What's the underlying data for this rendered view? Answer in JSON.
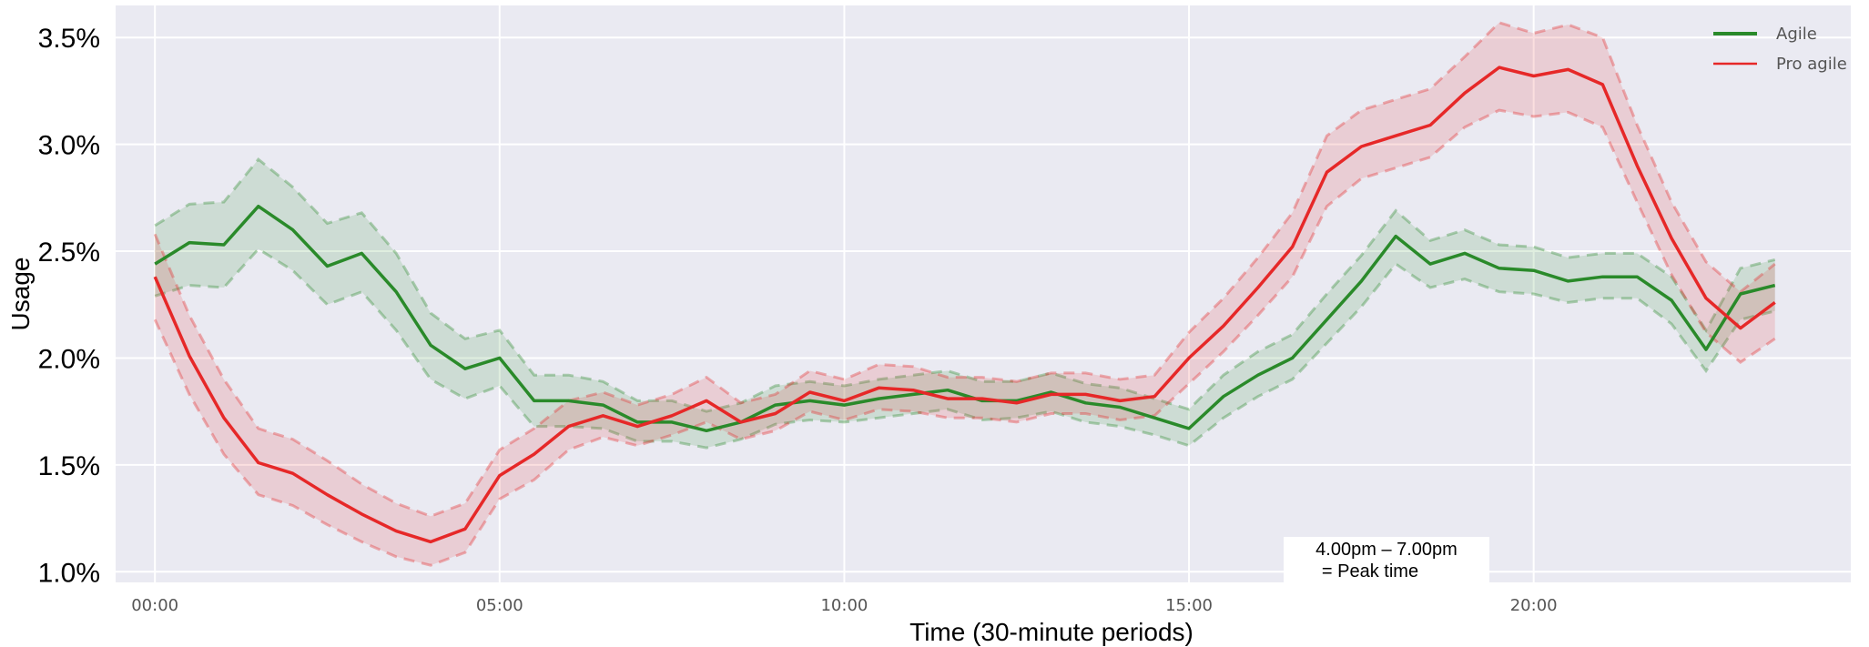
{
  "chart_data": {
    "type": "line",
    "xlabel": "Time (30-minute periods)",
    "ylabel": "Usage",
    "x_tick_labels": [
      "00:00",
      "05:00",
      "10:00",
      "15:00",
      "20:00"
    ],
    "y_tick_labels": [
      "1.0%",
      "1.5%",
      "2.0%",
      "2.5%",
      "3.0%",
      "3.5%"
    ],
    "ylim": [
      0.95,
      3.65
    ],
    "xlim": [
      -0.57,
      24.6
    ],
    "grid": true,
    "legend_placement": "top-right",
    "x": [
      0,
      0.5,
      1,
      1.5,
      2,
      2.5,
      3,
      3.5,
      4,
      4.5,
      5,
      5.5,
      6,
      6.5,
      7,
      7.5,
      8,
      8.5,
      9,
      9.5,
      10,
      10.5,
      11,
      11.5,
      12,
      12.5,
      13,
      13.5,
      14,
      14.5,
      15,
      15.5,
      16,
      16.5,
      17,
      17.5,
      18,
      18.5,
      19,
      19.5,
      20,
      20.5,
      21,
      21.5,
      22,
      22.5,
      23,
      23.5
    ],
    "series": [
      {
        "name": "Agile",
        "color": "#2a8a2a",
        "values": [
          2.44,
          2.54,
          2.53,
          2.71,
          2.6,
          2.43,
          2.49,
          2.31,
          2.06,
          1.95,
          2.0,
          1.8,
          1.8,
          1.78,
          1.7,
          1.7,
          1.66,
          1.7,
          1.78,
          1.8,
          1.78,
          1.81,
          1.83,
          1.85,
          1.8,
          1.8,
          1.84,
          1.79,
          1.77,
          1.72,
          1.67,
          1.82,
          1.92,
          2.0,
          2.18,
          2.36,
          2.57,
          2.44,
          2.49,
          2.42,
          2.41,
          2.36,
          2.38,
          2.38,
          2.27,
          2.04,
          2.3,
          2.34
        ],
        "lower": [
          2.29,
          2.34,
          2.33,
          2.51,
          2.41,
          2.25,
          2.31,
          2.13,
          1.9,
          1.81,
          1.87,
          1.68,
          1.68,
          1.67,
          1.61,
          1.61,
          1.58,
          1.62,
          1.69,
          1.71,
          1.7,
          1.72,
          1.74,
          1.76,
          1.71,
          1.72,
          1.75,
          1.7,
          1.68,
          1.64,
          1.59,
          1.72,
          1.82,
          1.9,
          2.07,
          2.24,
          2.44,
          2.33,
          2.37,
          2.31,
          2.3,
          2.26,
          2.28,
          2.28,
          2.16,
          1.94,
          2.18,
          2.22
        ],
        "upper": [
          2.62,
          2.72,
          2.73,
          2.93,
          2.8,
          2.63,
          2.68,
          2.49,
          2.21,
          2.09,
          2.13,
          1.92,
          1.92,
          1.89,
          1.8,
          1.8,
          1.75,
          1.79,
          1.87,
          1.89,
          1.87,
          1.9,
          1.92,
          1.94,
          1.89,
          1.89,
          1.93,
          1.88,
          1.86,
          1.81,
          1.76,
          1.92,
          2.03,
          2.11,
          2.3,
          2.48,
          2.69,
          2.55,
          2.6,
          2.53,
          2.52,
          2.47,
          2.49,
          2.49,
          2.38,
          2.13,
          2.42,
          2.46
        ]
      },
      {
        "name": "Pro agile",
        "color": "#e62828",
        "values": [
          2.38,
          2.01,
          1.72,
          1.51,
          1.46,
          1.36,
          1.27,
          1.19,
          1.14,
          1.2,
          1.45,
          1.55,
          1.68,
          1.73,
          1.68,
          1.73,
          1.8,
          1.7,
          1.74,
          1.84,
          1.8,
          1.86,
          1.85,
          1.81,
          1.81,
          1.79,
          1.83,
          1.83,
          1.8,
          1.82,
          2.0,
          2.15,
          2.33,
          2.52,
          2.87,
          2.99,
          3.04,
          3.09,
          3.24,
          3.36,
          3.32,
          3.35,
          3.28,
          2.9,
          2.56,
          2.28,
          2.14,
          2.26
        ],
        "lower": [
          2.18,
          1.83,
          1.55,
          1.36,
          1.31,
          1.22,
          1.14,
          1.07,
          1.03,
          1.09,
          1.34,
          1.43,
          1.57,
          1.63,
          1.59,
          1.64,
          1.7,
          1.62,
          1.66,
          1.75,
          1.71,
          1.76,
          1.75,
          1.72,
          1.72,
          1.7,
          1.74,
          1.74,
          1.71,
          1.73,
          1.88,
          2.03,
          2.2,
          2.38,
          2.71,
          2.84,
          2.89,
          2.94,
          3.08,
          3.16,
          3.13,
          3.15,
          3.08,
          2.73,
          2.39,
          2.12,
          1.98,
          2.09
        ],
        "upper": [
          2.58,
          2.2,
          1.9,
          1.67,
          1.62,
          1.52,
          1.41,
          1.32,
          1.26,
          1.32,
          1.57,
          1.67,
          1.8,
          1.84,
          1.78,
          1.83,
          1.91,
          1.79,
          1.83,
          1.94,
          1.9,
          1.97,
          1.96,
          1.91,
          1.91,
          1.89,
          1.93,
          1.93,
          1.9,
          1.92,
          2.12,
          2.28,
          2.47,
          2.68,
          3.04,
          3.16,
          3.21,
          3.26,
          3.41,
          3.57,
          3.52,
          3.56,
          3.5,
          3.09,
          2.73,
          2.45,
          2.31,
          2.44
        ]
      }
    ],
    "annotation": {
      "line1": "4.00pm – 7.00pm",
      "line2": "= Peak time"
    }
  }
}
